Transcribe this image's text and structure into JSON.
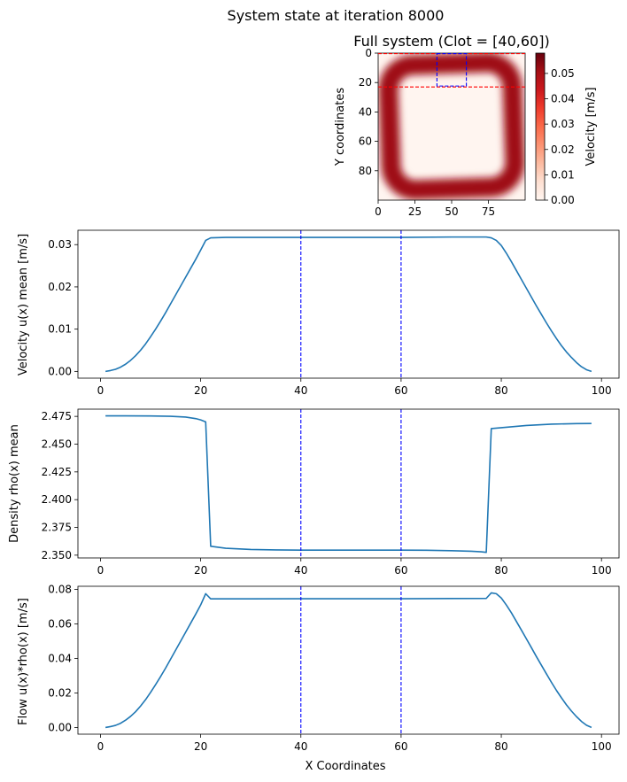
{
  "figure": {
    "suptitle": "System state at iteration 8000"
  },
  "chart_data": [
    {
      "type": "heatmap",
      "title": "Full system (Clot = [40,60])",
      "xlabel": "",
      "ylabel": "Y coordinates",
      "xlim": [
        0,
        100
      ],
      "ylim": [
        100,
        0
      ],
      "xticks": [
        0,
        25,
        50,
        75
      ],
      "yticks": [
        0,
        20,
        40,
        60,
        80
      ],
      "colormap": "Reds",
      "colorbar": {
        "label": "Velocity [m/s]",
        "min": 0,
        "max": 0.058,
        "ticks": [
          0.0,
          0.01,
          0.02,
          0.03,
          0.04,
          0.05
        ],
        "tick_labels": [
          "0.00",
          "0.01",
          "0.02",
          "0.03",
          "0.04",
          "0.05"
        ]
      },
      "field": {
        "description_values": "ring of high velocity around a square loop; peak about 0.058 m/s, interior and exterior near 0",
        "ring_center": [
          50,
          50
        ],
        "ring_half_width": 36,
        "ring_thickness": 7,
        "peak": 0.058
      },
      "clot_box": {
        "x": [
          40,
          60
        ],
        "y": [
          0,
          22
        ],
        "color": "#0000ff"
      },
      "ref_lines_y": [
        0,
        23
      ],
      "ref_line_color": "#ff0000"
    },
    {
      "type": "line",
      "title": "",
      "xlabel": "",
      "ylabel": "Velocity u(x) mean [m/s]",
      "xlim": [
        -4.5,
        103.5
      ],
      "ylim": [
        -0.0016,
        0.0334
      ],
      "xticks": [
        0,
        20,
        40,
        60,
        80,
        100
      ],
      "yticks": [
        0.0,
        0.01,
        0.02,
        0.03
      ],
      "ytick_labels": [
        "0.00",
        "0.01",
        "0.02",
        "0.03"
      ],
      "vlines": [
        40,
        60
      ],
      "vline_color": "#0000ff",
      "series": [
        {
          "color": "#1f77b4",
          "x": [
            1,
            2,
            3,
            4,
            5,
            6,
            7,
            8,
            9,
            10,
            11,
            12,
            13,
            14,
            15,
            16,
            17,
            18,
            19,
            20,
            21,
            22,
            25,
            30,
            40,
            50,
            60,
            70,
            77,
            78,
            79,
            80,
            81,
            82,
            83,
            84,
            85,
            86,
            87,
            88,
            89,
            90,
            91,
            92,
            93,
            94,
            95,
            96,
            97,
            98
          ],
          "values": [
            0.0,
            0.0002,
            0.0005,
            0.001,
            0.0017,
            0.0026,
            0.0037,
            0.005,
            0.0065,
            0.0082,
            0.01,
            0.0119,
            0.0139,
            0.016,
            0.0181,
            0.0202,
            0.0223,
            0.0244,
            0.0265,
            0.0287,
            0.031,
            0.0316,
            0.0317,
            0.0317,
            0.0317,
            0.0317,
            0.0317,
            0.0318,
            0.0318,
            0.0316,
            0.031,
            0.0298,
            0.028,
            0.026,
            0.0239,
            0.0218,
            0.0197,
            0.0176,
            0.0155,
            0.0135,
            0.0115,
            0.0096,
            0.0078,
            0.0061,
            0.0046,
            0.0033,
            0.0021,
            0.0011,
            0.0004,
            0.0
          ]
        }
      ]
    },
    {
      "type": "line",
      "title": "",
      "xlabel": "",
      "ylabel": "Density rho(x) mean",
      "xlim": [
        -4.5,
        103.5
      ],
      "ylim": [
        2.3475,
        2.4815
      ],
      "xticks": [
        0,
        20,
        40,
        60,
        80,
        100
      ],
      "yticks": [
        2.35,
        2.375,
        2.4,
        2.425,
        2.45,
        2.475
      ],
      "ytick_labels": [
        "2.350",
        "2.375",
        "2.400",
        "2.425",
        "2.450",
        "2.475"
      ],
      "vlines": [
        40,
        60
      ],
      "vline_color": "#0000ff",
      "series": [
        {
          "color": "#1f77b4",
          "x": [
            1,
            5,
            10,
            14,
            17,
            19,
            20,
            21,
            22,
            25,
            30,
            35,
            40,
            50,
            60,
            65,
            70,
            74,
            76,
            77,
            78,
            80,
            85,
            90,
            95,
            98
          ],
          "values": [
            2.4755,
            2.4755,
            2.4754,
            2.4751,
            2.4744,
            2.473,
            2.4718,
            2.47,
            2.358,
            2.3562,
            2.3551,
            2.3547,
            2.3545,
            2.3545,
            2.3545,
            2.3544,
            2.354,
            2.3535,
            2.353,
            2.3525,
            2.464,
            2.4648,
            2.4668,
            2.468,
            2.4685,
            2.4686
          ]
        }
      ]
    },
    {
      "type": "line",
      "title": "",
      "xlabel": "X Coordinates",
      "ylabel": "Flow u(x)*rho(x) [m/s]",
      "xlim": [
        -4.5,
        103.5
      ],
      "ylim": [
        -0.0039,
        0.0818
      ],
      "xticks": [
        0,
        20,
        40,
        60,
        80,
        100
      ],
      "yticks": [
        0.0,
        0.02,
        0.04,
        0.06,
        0.08
      ],
      "ytick_labels": [
        "0.00",
        "0.02",
        "0.04",
        "0.06",
        "0.08"
      ],
      "vlines": [
        40,
        60
      ],
      "vline_color": "#0000ff",
      "series": [
        {
          "color": "#1f77b4",
          "x": [
            1,
            2,
            3,
            4,
            5,
            6,
            7,
            8,
            9,
            10,
            11,
            12,
            13,
            14,
            15,
            16,
            17,
            18,
            19,
            20,
            21,
            22,
            25,
            30,
            40,
            50,
            60,
            70,
            77,
            78,
            79,
            80,
            81,
            82,
            83,
            84,
            85,
            86,
            87,
            88,
            89,
            90,
            91,
            92,
            93,
            94,
            95,
            96,
            97,
            98
          ],
          "values": [
            0.0,
            0.0005,
            0.0012,
            0.0024,
            0.0042,
            0.0064,
            0.0091,
            0.0124,
            0.0161,
            0.0203,
            0.0248,
            0.0295,
            0.0344,
            0.0396,
            0.0448,
            0.05,
            0.0552,
            0.0604,
            0.0656,
            0.071,
            0.0775,
            0.0745,
            0.0745,
            0.0745,
            0.0746,
            0.0746,
            0.0746,
            0.0747,
            0.0748,
            0.078,
            0.0775,
            0.075,
            0.071,
            0.0665,
            0.0615,
            0.0565,
            0.0514,
            0.0463,
            0.0411,
            0.0361,
            0.0311,
            0.0262,
            0.0215,
            0.0172,
            0.0131,
            0.0095,
            0.0063,
            0.0035,
            0.0013,
            0.0
          ]
        }
      ]
    }
  ]
}
